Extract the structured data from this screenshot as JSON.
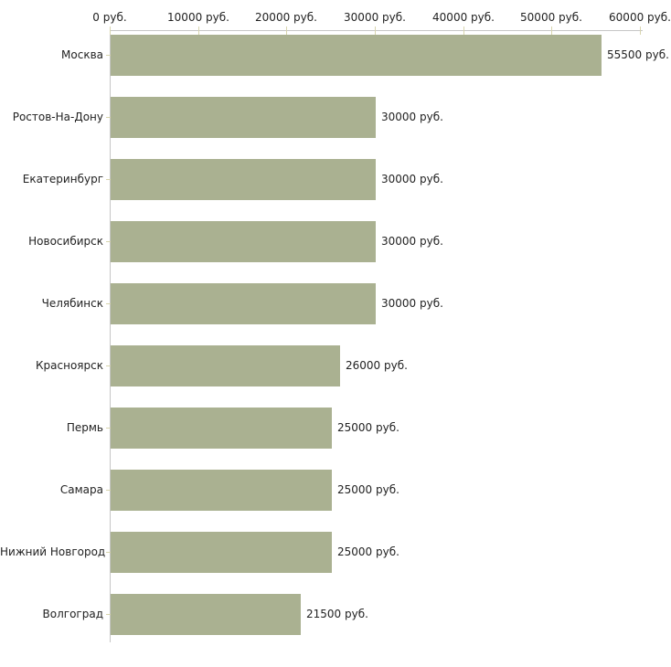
{
  "chart_data": {
    "type": "bar",
    "orientation": "horizontal",
    "title": "",
    "xlabel": "",
    "ylabel": "",
    "unit": "руб.",
    "categories": [
      "Москва",
      "Ростов-На-Дону",
      "Екатеринбург",
      "Новосибирск",
      "Челябинск",
      "Красноярск",
      "Пермь",
      "Самара",
      "Нижний Новгород",
      "Волгоград"
    ],
    "values": [
      55500,
      30000,
      30000,
      30000,
      30000,
      26000,
      25000,
      25000,
      25000,
      21500
    ],
    "value_labels": [
      "55500 руб.",
      "30000 руб.",
      "30000 руб.",
      "30000 руб.",
      "30000 руб.",
      "26000 руб.",
      "25000 руб.",
      "25000 руб.",
      "25000 руб.",
      "21500 руб."
    ],
    "x_ticks": [
      {
        "value": 0,
        "label": "0 руб."
      },
      {
        "value": 10000,
        "label": "10000 руб."
      },
      {
        "value": 20000,
        "label": "20000 руб."
      },
      {
        "value": 30000,
        "label": "30000 руб."
      },
      {
        "value": 40000,
        "label": "40000 руб."
      },
      {
        "value": 50000,
        "label": "50000 руб."
      },
      {
        "value": 60000,
        "label": "60000 руб."
      }
    ],
    "xlim": [
      0,
      60000
    ],
    "grid": false,
    "legend": null,
    "colors": {
      "bar": "#aab191",
      "axis": "#c6c6c6",
      "tick": "#d8d5ae",
      "text": "#222222",
      "background": "#ffffff"
    }
  }
}
